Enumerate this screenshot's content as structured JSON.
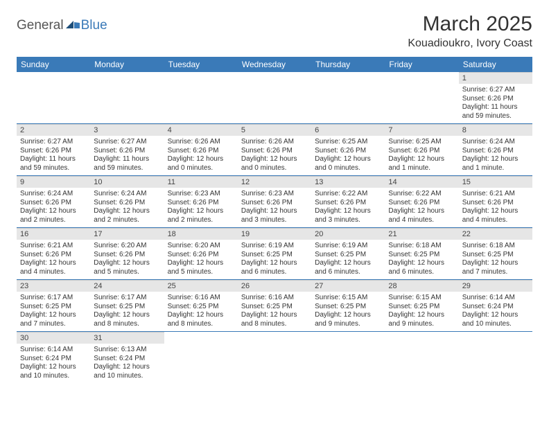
{
  "logo": {
    "general": "General",
    "blue": "Blue"
  },
  "title": "March 2025",
  "location": "Kouadioukro, Ivory Coast",
  "header_bg": "#3a7ab8",
  "header_text_color": "#ffffff",
  "daynum_bg": "#e6e6e6",
  "cell_border_color": "#3a7ab8",
  "days": [
    "Sunday",
    "Monday",
    "Tuesday",
    "Wednesday",
    "Thursday",
    "Friday",
    "Saturday"
  ],
  "weeks": [
    [
      null,
      null,
      null,
      null,
      null,
      null,
      {
        "n": "1",
        "sr": "Sunrise: 6:27 AM",
        "ss": "Sunset: 6:26 PM",
        "dl": "Daylight: 11 hours and 59 minutes."
      }
    ],
    [
      {
        "n": "2",
        "sr": "Sunrise: 6:27 AM",
        "ss": "Sunset: 6:26 PM",
        "dl": "Daylight: 11 hours and 59 minutes."
      },
      {
        "n": "3",
        "sr": "Sunrise: 6:27 AM",
        "ss": "Sunset: 6:26 PM",
        "dl": "Daylight: 11 hours and 59 minutes."
      },
      {
        "n": "4",
        "sr": "Sunrise: 6:26 AM",
        "ss": "Sunset: 6:26 PM",
        "dl": "Daylight: 12 hours and 0 minutes."
      },
      {
        "n": "5",
        "sr": "Sunrise: 6:26 AM",
        "ss": "Sunset: 6:26 PM",
        "dl": "Daylight: 12 hours and 0 minutes."
      },
      {
        "n": "6",
        "sr": "Sunrise: 6:25 AM",
        "ss": "Sunset: 6:26 PM",
        "dl": "Daylight: 12 hours and 0 minutes."
      },
      {
        "n": "7",
        "sr": "Sunrise: 6:25 AM",
        "ss": "Sunset: 6:26 PM",
        "dl": "Daylight: 12 hours and 1 minute."
      },
      {
        "n": "8",
        "sr": "Sunrise: 6:24 AM",
        "ss": "Sunset: 6:26 PM",
        "dl": "Daylight: 12 hours and 1 minute."
      }
    ],
    [
      {
        "n": "9",
        "sr": "Sunrise: 6:24 AM",
        "ss": "Sunset: 6:26 PM",
        "dl": "Daylight: 12 hours and 2 minutes."
      },
      {
        "n": "10",
        "sr": "Sunrise: 6:24 AM",
        "ss": "Sunset: 6:26 PM",
        "dl": "Daylight: 12 hours and 2 minutes."
      },
      {
        "n": "11",
        "sr": "Sunrise: 6:23 AM",
        "ss": "Sunset: 6:26 PM",
        "dl": "Daylight: 12 hours and 2 minutes."
      },
      {
        "n": "12",
        "sr": "Sunrise: 6:23 AM",
        "ss": "Sunset: 6:26 PM",
        "dl": "Daylight: 12 hours and 3 minutes."
      },
      {
        "n": "13",
        "sr": "Sunrise: 6:22 AM",
        "ss": "Sunset: 6:26 PM",
        "dl": "Daylight: 12 hours and 3 minutes."
      },
      {
        "n": "14",
        "sr": "Sunrise: 6:22 AM",
        "ss": "Sunset: 6:26 PM",
        "dl": "Daylight: 12 hours and 4 minutes."
      },
      {
        "n": "15",
        "sr": "Sunrise: 6:21 AM",
        "ss": "Sunset: 6:26 PM",
        "dl": "Daylight: 12 hours and 4 minutes."
      }
    ],
    [
      {
        "n": "16",
        "sr": "Sunrise: 6:21 AM",
        "ss": "Sunset: 6:26 PM",
        "dl": "Daylight: 12 hours and 4 minutes."
      },
      {
        "n": "17",
        "sr": "Sunrise: 6:20 AM",
        "ss": "Sunset: 6:26 PM",
        "dl": "Daylight: 12 hours and 5 minutes."
      },
      {
        "n": "18",
        "sr": "Sunrise: 6:20 AM",
        "ss": "Sunset: 6:26 PM",
        "dl": "Daylight: 12 hours and 5 minutes."
      },
      {
        "n": "19",
        "sr": "Sunrise: 6:19 AM",
        "ss": "Sunset: 6:25 PM",
        "dl": "Daylight: 12 hours and 6 minutes."
      },
      {
        "n": "20",
        "sr": "Sunrise: 6:19 AM",
        "ss": "Sunset: 6:25 PM",
        "dl": "Daylight: 12 hours and 6 minutes."
      },
      {
        "n": "21",
        "sr": "Sunrise: 6:18 AM",
        "ss": "Sunset: 6:25 PM",
        "dl": "Daylight: 12 hours and 6 minutes."
      },
      {
        "n": "22",
        "sr": "Sunrise: 6:18 AM",
        "ss": "Sunset: 6:25 PM",
        "dl": "Daylight: 12 hours and 7 minutes."
      }
    ],
    [
      {
        "n": "23",
        "sr": "Sunrise: 6:17 AM",
        "ss": "Sunset: 6:25 PM",
        "dl": "Daylight: 12 hours and 7 minutes."
      },
      {
        "n": "24",
        "sr": "Sunrise: 6:17 AM",
        "ss": "Sunset: 6:25 PM",
        "dl": "Daylight: 12 hours and 8 minutes."
      },
      {
        "n": "25",
        "sr": "Sunrise: 6:16 AM",
        "ss": "Sunset: 6:25 PM",
        "dl": "Daylight: 12 hours and 8 minutes."
      },
      {
        "n": "26",
        "sr": "Sunrise: 6:16 AM",
        "ss": "Sunset: 6:25 PM",
        "dl": "Daylight: 12 hours and 8 minutes."
      },
      {
        "n": "27",
        "sr": "Sunrise: 6:15 AM",
        "ss": "Sunset: 6:25 PM",
        "dl": "Daylight: 12 hours and 9 minutes."
      },
      {
        "n": "28",
        "sr": "Sunrise: 6:15 AM",
        "ss": "Sunset: 6:25 PM",
        "dl": "Daylight: 12 hours and 9 minutes."
      },
      {
        "n": "29",
        "sr": "Sunrise: 6:14 AM",
        "ss": "Sunset: 6:24 PM",
        "dl": "Daylight: 12 hours and 10 minutes."
      }
    ],
    [
      {
        "n": "30",
        "sr": "Sunrise: 6:14 AM",
        "ss": "Sunset: 6:24 PM",
        "dl": "Daylight: 12 hours and 10 minutes."
      },
      {
        "n": "31",
        "sr": "Sunrise: 6:13 AM",
        "ss": "Sunset: 6:24 PM",
        "dl": "Daylight: 12 hours and 10 minutes."
      },
      null,
      null,
      null,
      null,
      null
    ]
  ]
}
